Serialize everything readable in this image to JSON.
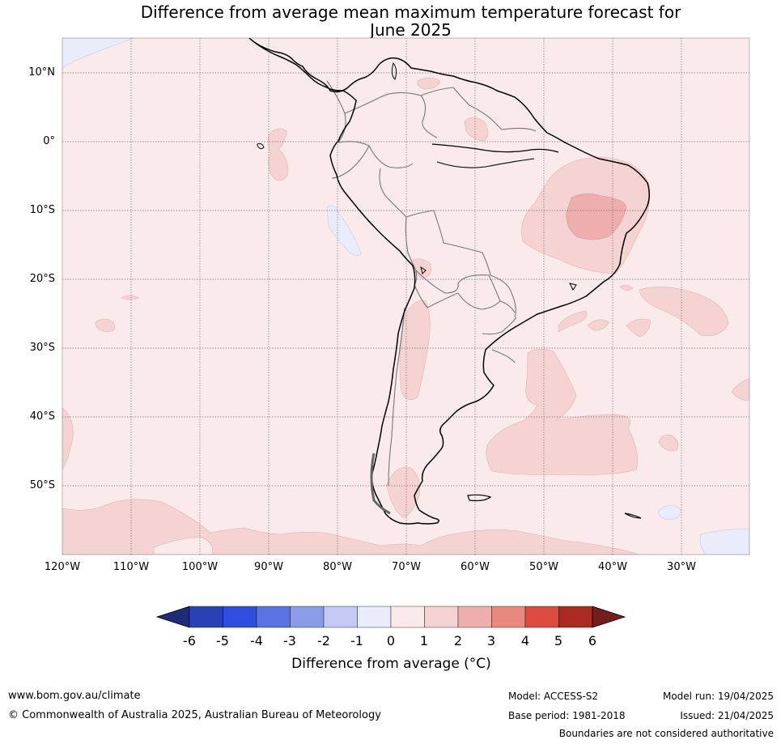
{
  "title_line1": "Difference from average mean maximum temperature forecast for",
  "title_line2": "June 2025",
  "lat_labels": [
    "10°N",
    "0°",
    "10°S",
    "20°S",
    "30°S",
    "40°S",
    "50°S"
  ],
  "lon_labels": [
    "120°W",
    "110°W",
    "100°W",
    "90°W",
    "80°W",
    "70°W",
    "60°W",
    "50°W",
    "40°W",
    "30°W"
  ],
  "colorbar": {
    "labels": [
      "-6",
      "-5",
      "-4",
      "-3",
      "-2",
      "-1",
      "0",
      "1",
      "2",
      "3",
      "4",
      "5",
      "6"
    ],
    "title": "Difference from average (°C)",
    "colors": [
      "#1f2a78",
      "#2a41b5",
      "#2f4fe0",
      "#5a72e2",
      "#8a9be8",
      "#c3c9f2",
      "#e8ecfb",
      "#fbeaea",
      "#f6d3d3",
      "#eeaeae",
      "#e9887e",
      "#db4b3e",
      "#ab2b23",
      "#741d1c"
    ]
  },
  "footer": {
    "website": "www.bom.gov.au/climate",
    "copyright": "© Commonwealth of Australia 2025, Australian Bureau of Meteorology",
    "model": "Model: ACCESS-S2",
    "base_period": "Base period: 1981-2018",
    "model_run": "Model run: 19/04/2025",
    "issued": "Issued: 21/04/2025",
    "disclaimer": "Boundaries are not considered authoritative"
  }
}
